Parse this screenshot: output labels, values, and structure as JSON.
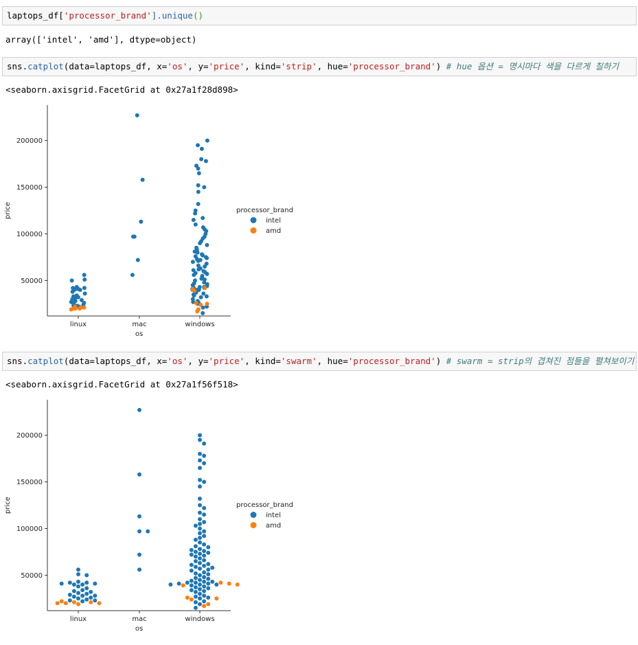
{
  "cells": [
    {
      "input_parts": [
        {
          "t": "laptops_df[",
          "c": "plain"
        },
        {
          "t": "'processor_brand'",
          "c": "str"
        },
        {
          "t": "].unique",
          "c": "fn"
        },
        {
          "t": "()",
          "c": "p"
        }
      ],
      "output": "array(['intel', 'amd'], dtype=object)"
    },
    {
      "input_parts": [
        {
          "t": "sns.",
          "c": "plain"
        },
        {
          "t": "catplot",
          "c": "fn"
        },
        {
          "t": "(data=laptops_df, x=",
          "c": "plain"
        },
        {
          "t": "'os'",
          "c": "str"
        },
        {
          "t": ", y=",
          "c": "plain"
        },
        {
          "t": "'price'",
          "c": "str"
        },
        {
          "t": ", kind=",
          "c": "plain"
        },
        {
          "t": "'strip'",
          "c": "str"
        },
        {
          "t": ", hue=",
          "c": "plain"
        },
        {
          "t": "'processor_brand'",
          "c": "str"
        },
        {
          "t": ") ",
          "c": "plain"
        },
        {
          "t": "# hue 옵션 = 명시마다 색을 다르게 칠하기",
          "c": "cm"
        }
      ],
      "output": "<seaborn.axisgrid.FacetGrid at 0x27a1f28d898>"
    },
    {
      "input_parts": [
        {
          "t": "sns.",
          "c": "plain"
        },
        {
          "t": "catplot",
          "c": "fn"
        },
        {
          "t": "(data=laptops_df, x=",
          "c": "plain"
        },
        {
          "t": "'os'",
          "c": "str"
        },
        {
          "t": ", y=",
          "c": "plain"
        },
        {
          "t": "'price'",
          "c": "str"
        },
        {
          "t": ", kind=",
          "c": "plain"
        },
        {
          "t": "'swarm'",
          "c": "str"
        },
        {
          "t": ", hue=",
          "c": "plain"
        },
        {
          "t": "'processor_brand'",
          "c": "str"
        },
        {
          "t": ") ",
          "c": "plain"
        },
        {
          "t": "# swarm = strip의 겹쳐진 점들을 펼쳐보이기",
          "c": "cm"
        }
      ],
      "output": "<seaborn.axisgrid.FacetGrid at 0x27a1f56f518>"
    }
  ],
  "colors": {
    "intel": "#1f77b4",
    "amd": "#ff7f0e"
  },
  "chart_data": [
    {
      "type": "scatter",
      "kind": "strip",
      "categories": [
        "linux",
        "mac",
        "windows"
      ],
      "xlabel": "os",
      "ylabel": "price",
      "ylim": [
        12000,
        238000
      ],
      "yticks": [
        50000,
        100000,
        150000,
        200000
      ],
      "ytick_labels": [
        "50000",
        "100000",
        "150000",
        "200000"
      ],
      "legend_title": "processor_brand",
      "legend_placement": "right",
      "series": [
        {
          "name": "intel",
          "values": {
            "linux": [
              56000,
              51000,
              50000,
              43000,
              42000,
              42000,
              41000,
              41000,
              40000,
              40000,
              38000,
              36000,
              34000,
              33000,
              32000,
              31000,
              30000,
              29000,
              28000,
              28000,
              27000,
              26000,
              25000,
              24000,
              23000,
              23000,
              22000
            ],
            "mac": [
              227000,
              158000,
              113000,
              97000,
              97000,
              72000,
              56000
            ],
            "windows": [
              200000,
              195000,
              191000,
              180000,
              178000,
              173000,
              170000,
              165000,
              152000,
              150000,
              145000,
              132000,
              125000,
              122000,
              117000,
              115000,
              110000,
              107000,
              105000,
              103000,
              100000,
              97000,
              95000,
              92000,
              90000,
              88000,
              85000,
              83000,
              81000,
              80000,
              78000,
              77000,
              76000,
              75000,
              74000,
              73000,
              72000,
              71000,
              70000,
              68000,
              66000,
              65000,
              63000,
              62000,
              61000,
              60000,
              59000,
              58000,
              57000,
              56000,
              55000,
              53000,
              52000,
              51000,
              50000,
              48000,
              47000,
              46000,
              45000,
              44000,
              43000,
              43000,
              42000,
              42000,
              41000,
              41000,
              40000,
              40000,
              40000,
              39000,
              38000,
              37000,
              36000,
              35000,
              34000,
              33000,
              32000,
              30000,
              28000,
              27000,
              26000,
              25000,
              22000,
              21000,
              19000,
              15000
            ]
          }
        },
        {
          "name": "amd",
          "values": {
            "linux": [
              22000,
              21000,
              21000,
              20000,
              20000,
              20000,
              19000
            ],
            "mac": [],
            "windows": [
              42000,
              41000,
              40000,
              39000,
              26000,
              25000,
              24000,
              19000,
              17000
            ]
          }
        }
      ]
    },
    {
      "type": "scatter",
      "kind": "swarm",
      "categories": [
        "linux",
        "mac",
        "windows"
      ],
      "xlabel": "os",
      "ylabel": "price",
      "ylim": [
        12000,
        238000
      ],
      "yticks": [
        50000,
        100000,
        150000,
        200000
      ],
      "ytick_labels": [
        "50000",
        "100000",
        "150000",
        "200000"
      ],
      "legend_title": "processor_brand",
      "legend_placement": "right",
      "series": [
        {
          "name": "intel",
          "values": {
            "linux": [
              56000,
              51000,
              50000,
              43000,
              42000,
              42000,
              41000,
              41000,
              40000,
              40000,
              38000,
              36000,
              34000,
              33000,
              32000,
              31000,
              30000,
              29000,
              28000,
              28000,
              27000,
              26000,
              25000,
              24000,
              23000,
              23000,
              22000
            ],
            "mac": [
              227000,
              158000,
              113000,
              97000,
              97000,
              72000,
              56000
            ],
            "windows": [
              200000,
              195000,
              191000,
              180000,
              178000,
              173000,
              170000,
              165000,
              152000,
              150000,
              145000,
              132000,
              125000,
              122000,
              117000,
              115000,
              110000,
              107000,
              105000,
              103000,
              100000,
              97000,
              95000,
              92000,
              90000,
              88000,
              85000,
              83000,
              81000,
              80000,
              78000,
              77000,
              76000,
              75000,
              74000,
              73000,
              72000,
              71000,
              70000,
              68000,
              66000,
              65000,
              63000,
              62000,
              61000,
              60000,
              59000,
              58000,
              57000,
              56000,
              55000,
              53000,
              52000,
              51000,
              50000,
              48000,
              47000,
              46000,
              45000,
              44000,
              43000,
              43000,
              42000,
              42000,
              41000,
              41000,
              40000,
              40000,
              40000,
              39000,
              38000,
              37000,
              36000,
              35000,
              34000,
              33000,
              32000,
              30000,
              28000,
              27000,
              26000,
              25000,
              22000,
              21000,
              19000,
              15000
            ]
          }
        },
        {
          "name": "amd",
          "values": {
            "linux": [
              22000,
              21000,
              21000,
              20000,
              20000,
              20000,
              19000
            ],
            "mac": [],
            "windows": [
              42000,
              41000,
              40000,
              39000,
              26000,
              25000,
              24000,
              19000,
              17000
            ]
          }
        }
      ]
    }
  ]
}
